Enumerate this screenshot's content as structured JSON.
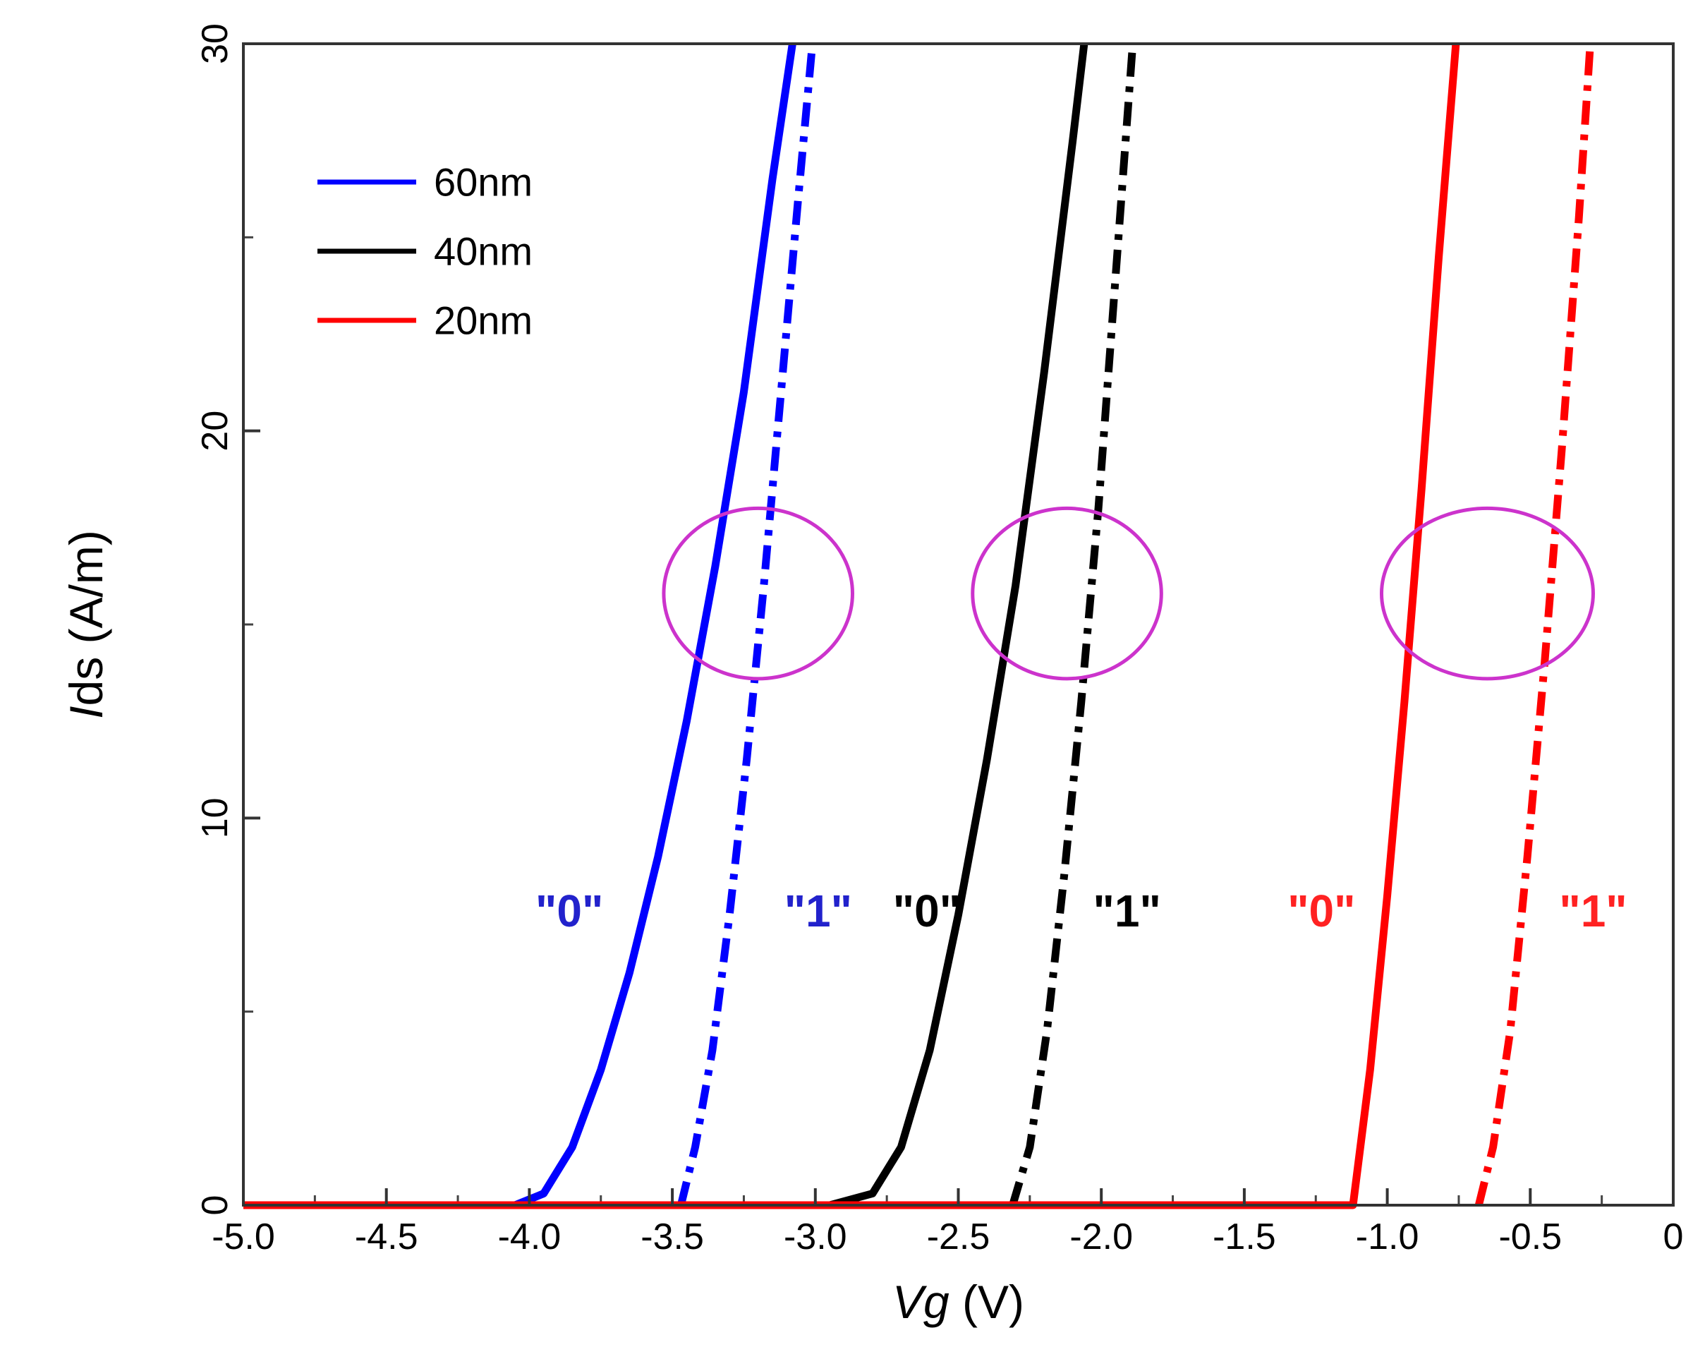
{
  "chart_data": {
    "type": "line",
    "title": "",
    "xlabel": "Vg (V)",
    "ylabel": "Ids (A/m)",
    "xlim": [
      -5.0,
      0
    ],
    "ylim": [
      0,
      30
    ],
    "x_ticks": [
      -5.0,
      -4.5,
      -4.0,
      -3.5,
      -3.0,
      -2.5,
      -2.0,
      -1.5,
      -1.0,
      -0.5,
      0
    ],
    "x_tick_labels": [
      "-5.0",
      "-4.5",
      "-4.0",
      "-3.5",
      "-3.0",
      "-2.5",
      "-2.0",
      "-1.5",
      "-1.0",
      "-0.5",
      "0"
    ],
    "y_ticks": [
      0,
      10,
      20,
      30
    ],
    "y_tick_labels": [
      "0",
      "10",
      "20",
      "30"
    ],
    "legend": {
      "position": "top-left",
      "entries": [
        {
          "label": "60nm",
          "color": "#0000ff"
        },
        {
          "label": "40nm",
          "color": "#000000"
        },
        {
          "label": "20nm",
          "color": "#ff0000"
        }
      ]
    },
    "series": [
      {
        "name": "60nm \"0\"",
        "color": "#0000ff",
        "style": "solid",
        "x": [
          -5.0,
          -4.05,
          -3.95,
          -3.85,
          -3.75,
          -3.65,
          -3.55,
          -3.45,
          -3.35,
          -3.25,
          -3.15,
          -3.08
        ],
        "y": [
          0,
          0,
          0.3,
          1.5,
          3.5,
          6.0,
          9.0,
          12.5,
          16.5,
          21.0,
          26.5,
          30
        ]
      },
      {
        "name": "60nm \"1\"",
        "color": "#0000ff",
        "style": "dashdot",
        "x": [
          -3.47,
          -3.42,
          -3.36,
          -3.3,
          -3.24,
          -3.18,
          -3.12,
          -3.06,
          -3.01
        ],
        "y": [
          0,
          1.5,
          4.0,
          7.5,
          11.5,
          16.0,
          21.0,
          26.0,
          30
        ]
      },
      {
        "name": "40nm \"0\"",
        "color": "#000000",
        "style": "solid",
        "x": [
          -2.95,
          -2.8,
          -2.7,
          -2.6,
          -2.5,
          -2.4,
          -2.3,
          -2.2,
          -2.1,
          -2.06
        ],
        "y": [
          0,
          0.3,
          1.5,
          4.0,
          7.5,
          11.5,
          16.0,
          21.5,
          27.5,
          30
        ]
      },
      {
        "name": "40nm \"1\"",
        "color": "#000000",
        "style": "dashdot",
        "x": [
          -2.31,
          -2.25,
          -2.19,
          -2.13,
          -2.07,
          -2.01,
          -1.95,
          -1.89
        ],
        "y": [
          0,
          1.5,
          4.5,
          8.5,
          13.0,
          18.0,
          24.0,
          30
        ]
      },
      {
        "name": "20nm \"0\"",
        "color": "#ff0000",
        "style": "solid",
        "x": [
          -5.0,
          -1.12,
          -1.06,
          -1.0,
          -0.94,
          -0.88,
          -0.82,
          -0.76
        ],
        "y": [
          0,
          0,
          3.5,
          8.0,
          13.0,
          18.5,
          24.5,
          30
        ]
      },
      {
        "name": "20nm \"1\"",
        "color": "#ff0000",
        "style": "dashdot",
        "x": [
          -0.68,
          -0.63,
          -0.57,
          -0.51,
          -0.45,
          -0.39,
          -0.33,
          -0.29
        ],
        "y": [
          0,
          1.5,
          4.5,
          9.0,
          14.0,
          19.5,
          25.5,
          30
        ]
      }
    ],
    "annotations": [
      {
        "text": "\"0\"",
        "x": -3.86,
        "y": 7.6,
        "color": "#2222cc"
      },
      {
        "text": "\"1\"",
        "x": -2.99,
        "y": 7.6,
        "color": "#2222cc"
      },
      {
        "text": "\"0\"",
        "x": -2.61,
        "y": 7.6,
        "color": "#000000"
      },
      {
        "text": "\"1\"",
        "x": -1.91,
        "y": 7.6,
        "color": "#000000"
      },
      {
        "text": "\"0\"",
        "x": -1.23,
        "y": 7.6,
        "color": "#ff2222"
      },
      {
        "text": "\"1\"",
        "x": -0.28,
        "y": 7.6,
        "color": "#ff2222"
      }
    ],
    "ellipses": [
      {
        "cx": -3.2,
        "cy": 15.8,
        "rx": 0.33,
        "ry": 2.2,
        "color": "#cc33cc"
      },
      {
        "cx": -2.12,
        "cy": 15.8,
        "rx": 0.33,
        "ry": 2.2,
        "color": "#cc33cc"
      },
      {
        "cx": -0.65,
        "cy": 15.8,
        "rx": 0.37,
        "ry": 2.2,
        "color": "#cc33cc"
      }
    ]
  }
}
